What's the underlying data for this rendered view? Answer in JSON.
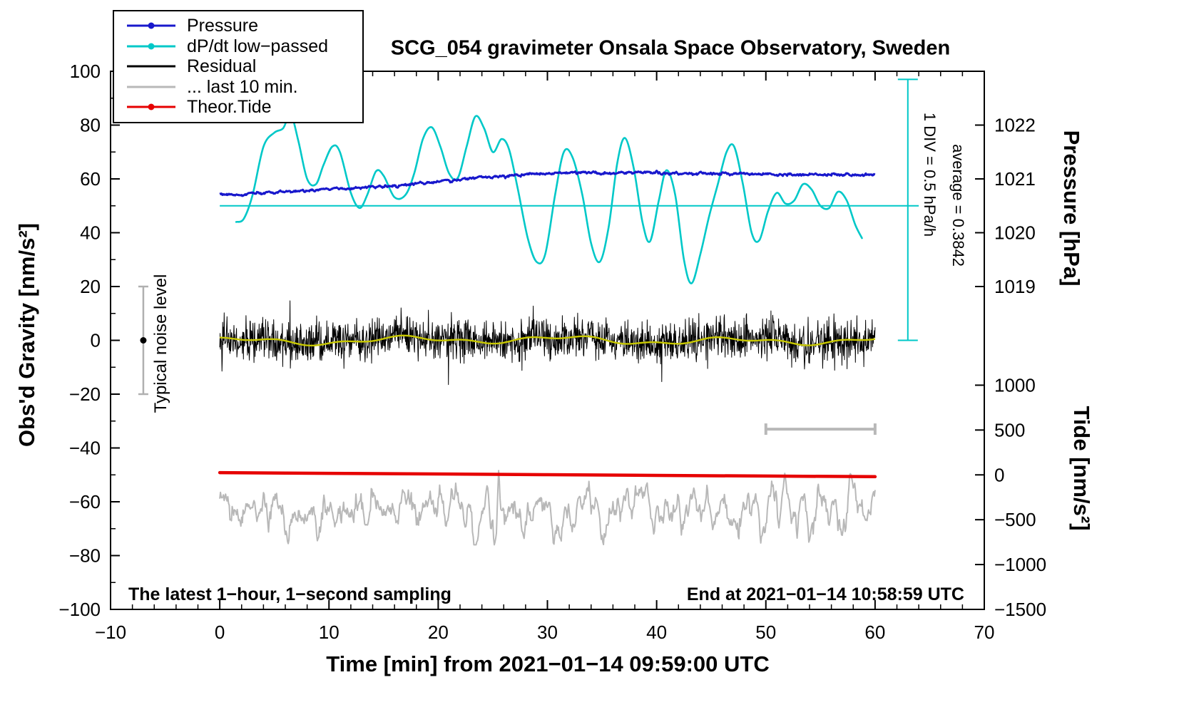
{
  "title": "SCG_054 gravimeter Onsala Space Observatory, Sweden",
  "legend": {
    "items": [
      {
        "label": "Pressure",
        "color": "#1818cc",
        "marker": true
      },
      {
        "label": "dP/dt low−passed",
        "color": "#00c8c8",
        "marker": true
      },
      {
        "label": "Residual",
        "color": "#000000",
        "marker": false
      },
      {
        "label": "... last 10 min.",
        "color": "#b8b8b8",
        "marker": false
      },
      {
        "label": "Theor.Tide",
        "color": "#e60000",
        "marker": true
      }
    ]
  },
  "annotations": {
    "noise_label": "Typical noise level",
    "div_label": "1 DIV = 0.5 hPa/h",
    "avg_label": "average = 0.3842",
    "bottom_left": "The latest 1−hour, 1−second sampling",
    "bottom_right": "End at 2021−01−14 10:58:59 UTC"
  },
  "chart_data": {
    "type": "line",
    "title": "SCG_054 gravimeter Onsala Space Observatory, Sweden",
    "sampling": "1 s",
    "axes": {
      "x": {
        "label": "Time [min] from 2021−01−14 09:59:00 UTC",
        "min": -10,
        "max": 70,
        "major_ticks": [
          -10,
          0,
          10,
          20,
          30,
          40,
          50,
          60,
          70
        ],
        "minor_step": 2
      },
      "y_left": {
        "label": "Obs'd Gravity [nm/s²]",
        "min": -100,
        "max": 100,
        "tick_step": 20,
        "minor_step": 10
      },
      "y_pressure": {
        "label": "Pressure [hPa]",
        "min": 1013,
        "max": 1023,
        "ticks": [
          1019,
          1020,
          1021,
          1022
        ]
      },
      "y_tide": {
        "label": "Tide [nm/s²]",
        "min": -1500,
        "max": 4500,
        "ticks": [
          1000,
          500,
          0,
          -500,
          -1000,
          -1500
        ]
      }
    },
    "series": [
      {
        "name": "Pressure",
        "color": "#1818cc",
        "axis": "pressure_hPa",
        "width": 3,
        "jitter_nm_s2": 0.25,
        "points": [
          [
            0,
            1020.71
          ],
          [
            2,
            1020.7
          ],
          [
            4,
            1020.74
          ],
          [
            6,
            1020.76
          ],
          [
            8,
            1020.79
          ],
          [
            10,
            1020.81
          ],
          [
            12,
            1020.82
          ],
          [
            14,
            1020.86
          ],
          [
            16,
            1020.87
          ],
          [
            18,
            1020.91
          ],
          [
            20,
            1020.95
          ],
          [
            22,
            1020.99
          ],
          [
            24,
            1021.03
          ],
          [
            26,
            1021.06
          ],
          [
            28,
            1021.09
          ],
          [
            30,
            1021.1
          ],
          [
            32,
            1021.11
          ],
          [
            34,
            1021.11
          ],
          [
            36,
            1021.11
          ],
          [
            38,
            1021.12
          ],
          [
            40,
            1021.12
          ],
          [
            42,
            1021.1
          ],
          [
            44,
            1021.1
          ],
          [
            46,
            1021.1
          ],
          [
            48,
            1021.1
          ],
          [
            50,
            1021.09
          ],
          [
            52,
            1021.08
          ],
          [
            54,
            1021.08
          ],
          [
            56,
            1021.08
          ],
          [
            58,
            1021.07
          ],
          [
            60,
            1021.08
          ]
        ]
      },
      {
        "name": "dP/dt low−passed",
        "color": "#00c8c8",
        "axis": "dPdt_hPa_per_h",
        "width": 2.6,
        "zero_at_gravity": 50,
        "gravity_units_per_hPa_h": 40,
        "points": [
          [
            1.5,
            -0.15
          ],
          [
            2.2,
            -0.12
          ],
          [
            3,
            0.1
          ],
          [
            4,
            0.55
          ],
          [
            5,
            0.68
          ],
          [
            5.8,
            0.72
          ],
          [
            6.5,
            0.85
          ],
          [
            7.2,
            0.6
          ],
          [
            8,
            0.25
          ],
          [
            8.8,
            0.2
          ],
          [
            9.5,
            0.38
          ],
          [
            10.3,
            0.55
          ],
          [
            11,
            0.5
          ],
          [
            12,
            0.12
          ],
          [
            12.8,
            -0.02
          ],
          [
            13.5,
            0.1
          ],
          [
            14.3,
            0.32
          ],
          [
            15,
            0.28
          ],
          [
            16,
            0.08
          ],
          [
            17,
            0.1
          ],
          [
            17.8,
            0.3
          ],
          [
            18.6,
            0.62
          ],
          [
            19.4,
            0.73
          ],
          [
            20.2,
            0.55
          ],
          [
            21,
            0.3
          ],
          [
            21.8,
            0.26
          ],
          [
            22.6,
            0.55
          ],
          [
            23.4,
            0.83
          ],
          [
            24.2,
            0.72
          ],
          [
            25,
            0.5
          ],
          [
            25.8,
            0.62
          ],
          [
            26.5,
            0.52
          ],
          [
            27.3,
            0.15
          ],
          [
            28.2,
            -0.3
          ],
          [
            29,
            -0.52
          ],
          [
            29.8,
            -0.45
          ],
          [
            30.7,
            0.1
          ],
          [
            31.5,
            0.5
          ],
          [
            32.3,
            0.45
          ],
          [
            33.2,
            0.1
          ],
          [
            34,
            -0.35
          ],
          [
            34.8,
            -0.52
          ],
          [
            35.6,
            -0.2
          ],
          [
            36.4,
            0.4
          ],
          [
            37.1,
            0.63
          ],
          [
            37.9,
            0.35
          ],
          [
            38.7,
            -0.15
          ],
          [
            39.4,
            -0.33
          ],
          [
            40.2,
            0.05
          ],
          [
            40.9,
            0.33
          ],
          [
            41.7,
            0.1
          ],
          [
            42.5,
            -0.5
          ],
          [
            43.2,
            -0.72
          ],
          [
            44,
            -0.45
          ],
          [
            44.8,
            -0.1
          ],
          [
            45.6,
            0.2
          ],
          [
            46.4,
            0.5
          ],
          [
            47.1,
            0.55
          ],
          [
            47.9,
            0.2
          ],
          [
            48.7,
            -0.25
          ],
          [
            49.4,
            -0.32
          ],
          [
            50.2,
            -0.05
          ],
          [
            51,
            0.12
          ],
          [
            51.8,
            0.02
          ],
          [
            52.6,
            0.05
          ],
          [
            53.4,
            0.2
          ],
          [
            54.2,
            0.15
          ],
          [
            55,
            0.0
          ],
          [
            55.8,
            -0.02
          ],
          [
            56.6,
            0.13
          ],
          [
            57.4,
            0.05
          ],
          [
            58.2,
            -0.18
          ],
          [
            58.8,
            -0.3
          ]
        ]
      },
      {
        "name": "Residual",
        "color": "#000000",
        "axis": "gravity_nm_s2",
        "width": 1,
        "center": 0,
        "sigma": 3.8,
        "spike_probability": 0.012,
        "spike_scale": 2.2,
        "max_excursion": 16.5,
        "t_range": [
          0,
          60
        ]
      },
      {
        "name": "Residual low−passed",
        "color": "#c8c800",
        "axis": "gravity_nm_s2",
        "width": 2.4,
        "center": 0,
        "amplitude": 2,
        "t_range": [
          0,
          60
        ]
      },
      {
        "name": "... last 10 min.",
        "color": "#b8b8b8",
        "axis": "gravity_nm_s2",
        "width": 2,
        "center": -63,
        "amplitude": 7,
        "t_range": [
          0,
          60
        ]
      },
      {
        "name": "Theor.Tide",
        "color": "#e60000",
        "axis": "tide_nm_s2",
        "width": 4.5,
        "points": [
          [
            0,
            25
          ],
          [
            10,
            17
          ],
          [
            20,
            10
          ],
          [
            30,
            2
          ],
          [
            40,
            -6
          ],
          [
            50,
            -13
          ],
          [
            60,
            -20
          ]
        ]
      }
    ],
    "reference_line": {
      "gravity_level": 50,
      "t_range": [
        0,
        64
      ],
      "color": "#00c8c8"
    },
    "div_indicator": {
      "t": 63,
      "gravity_range": [
        0,
        97
      ],
      "color": "#00c8c8"
    },
    "typical_noise": {
      "t": -7,
      "gravity": 0,
      "half_range": 20,
      "bar_color": "#b0b0b0",
      "dot_color": "#000000"
    },
    "window_bar": {
      "t_range": [
        50,
        60
      ],
      "gravity": -33,
      "color": "#b8b8b8"
    }
  }
}
